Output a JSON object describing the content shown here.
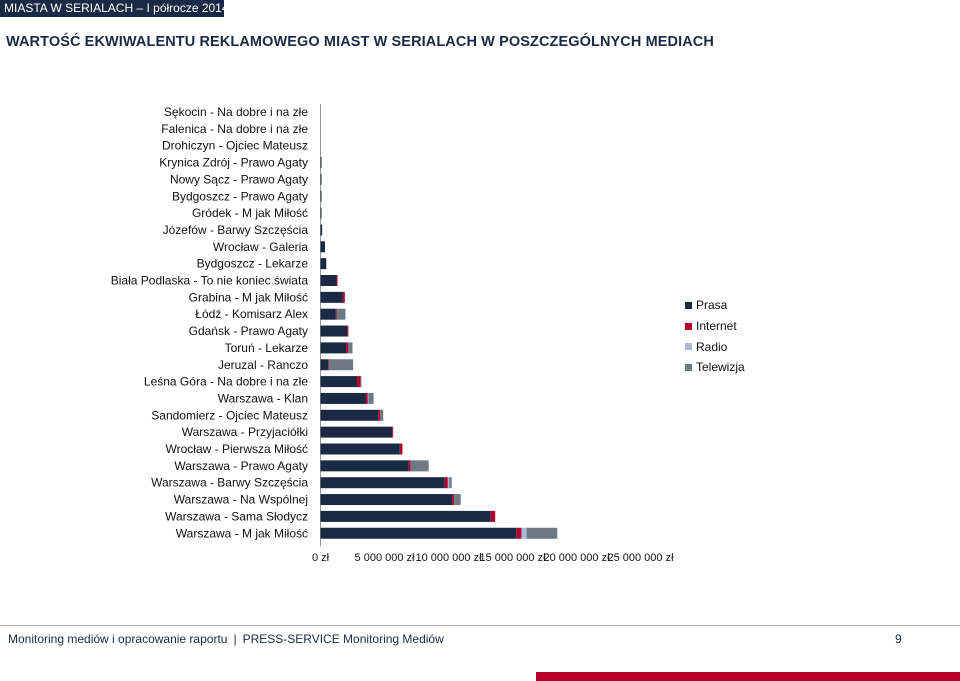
{
  "header": {
    "label": "MIASTA W SERIALACH – I półrocze 2014"
  },
  "title": "WARTOŚĆ EKWIWALENTU REKLAMOWEGO MIAST W SERIALACH W POSZCZEGÓLNYCH MEDIACH",
  "footer": {
    "left": "Monitoring mediów i opracowanie raportu",
    "separator": "|",
    "right": "PRESS-SERVICE Monitoring Mediów",
    "page": "9"
  },
  "colors": {
    "prasa": "#1b2a44",
    "internet": "#b5002b",
    "radio": "#a8bdd4",
    "telewizja": "#6d7a86",
    "accent": "#b5002b"
  },
  "chart_data": {
    "type": "bar",
    "orientation": "horizontal",
    "stacked": true,
    "title": "WARTOŚĆ EKWIWALENTU REKLAMOWEGO MIAST W SERIALACH W POSZCZEGÓLNYCH MEDIACH",
    "categories": [
      "Sękocin - Na dobre i na złe",
      "Falenica - Na dobre i na złe",
      "Drohiczyn - Ojciec Mateusz",
      "Krynica Zdrój - Prawo Agaty",
      "Nowy Sącz - Prawo Agaty",
      "Bydgoszcz - Prawo Agaty",
      "Gródek - M jak Miłość",
      "Józefów - Barwy Szczęścia",
      "Wrocław - Galeria",
      "Bydgoszcz - Lekarze",
      "Biała Podlaska - To nie koniec świata",
      "Grabina - M jak Miłość",
      "Łódź - Komisarz Alex",
      "Gdańsk - Prawo Agaty",
      "Toruń - Lekarze",
      "Jeruzal - Ranczo",
      "Leśna Góra - Na dobre i na złe",
      "Warszawa - Klan",
      "Sandomierz - Ojciec Mateusz",
      "Warszawa - Przyjaciółki",
      "Wrocław - Pierwsza Miłość",
      "Warszawa - Prawo Agaty",
      "Warszawa - Barwy Szczęścia",
      "Warszawa - Na Wspólnej",
      "Warszawa - Sama Słodycz",
      "Warszawa - M jak Miłość"
    ],
    "series": [
      {
        "name": "Prasa",
        "color": "#1b2a44",
        "values": [
          0,
          0,
          0,
          20000,
          40000,
          40000,
          60000,
          130000,
          350000,
          450000,
          1250000,
          1750000,
          1200000,
          2100000,
          2000000,
          600000,
          2850000,
          3550000,
          4500000,
          5600000,
          6200000,
          6900000,
          9700000,
          10300000,
          13300000,
          15300000
        ]
      },
      {
        "name": "Internet",
        "color": "#b5002b",
        "values": [
          0,
          0,
          0,
          0,
          0,
          0,
          0,
          0,
          0,
          0,
          80000,
          150000,
          50000,
          40000,
          150000,
          50000,
          300000,
          150000,
          150000,
          50000,
          200000,
          150000,
          250000,
          150000,
          350000,
          400000
        ]
      },
      {
        "name": "Radio",
        "color": "#a8bdd4",
        "values": [
          0,
          0,
          0,
          0,
          0,
          0,
          0,
          0,
          0,
          0,
          0,
          0,
          0,
          0,
          0,
          0,
          50000,
          50000,
          0,
          0,
          0,
          0,
          100000,
          0,
          0,
          400000
        ]
      },
      {
        "name": "Telewizja",
        "color": "#6d7a86",
        "values": [
          0,
          0,
          0,
          0,
          0,
          0,
          0,
          0,
          0,
          0,
          0,
          0,
          700000,
          0,
          350000,
          1900000,
          0,
          400000,
          250000,
          0,
          0,
          1400000,
          200000,
          500000,
          0,
          2400000
        ]
      }
    ],
    "xlim": [
      0,
      25000000
    ],
    "xticks": [
      "0 zł",
      "5 000 000 zł",
      "10 000 000 zł",
      "15 000 000 zł",
      "20 000 000 zł",
      "25 000 000 zł"
    ],
    "legend": [
      "Prasa",
      "Internet",
      "Radio",
      "Telewizja"
    ],
    "legend_position": "right",
    "grid": false
  }
}
